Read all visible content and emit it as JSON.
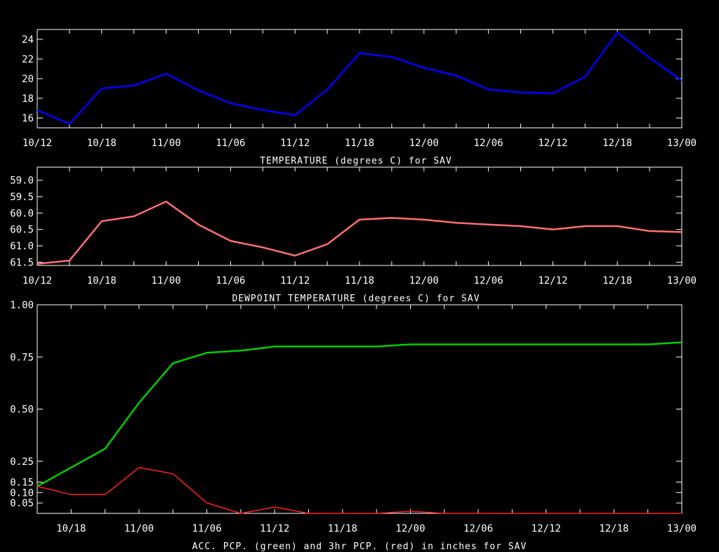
{
  "chart_data": [
    {
      "type": "line",
      "title": "TEMPERATURE (degrees C) for SAV",
      "categories": [
        "10/12",
        "10/15",
        "10/18",
        "10/21",
        "11/00",
        "11/03",
        "11/06",
        "11/09",
        "11/12",
        "11/15",
        "11/18",
        "11/21",
        "12/00",
        "12/03",
        "12/06",
        "12/09",
        "12/12",
        "12/15",
        "12/18",
        "12/21",
        "13/00"
      ],
      "x_tick_labels": [
        "10/12",
        "10/18",
        "11/00",
        "11/06",
        "11/12",
        "11/18",
        "12/00",
        "12/06",
        "12/12",
        "12/18",
        "13/00"
      ],
      "y_ticks": [
        "16",
        "18",
        "20",
        "22",
        "24"
      ],
      "ylim": [
        15,
        25
      ],
      "grid": false,
      "series": [
        {
          "color": "#0000ff",
          "values": [
            16.8,
            15.4,
            19.0,
            19.3,
            20.5,
            18.8,
            17.5,
            16.8,
            16.3,
            18.9,
            22.6,
            22.2,
            21.1,
            20.3,
            18.9,
            18.6,
            18.5,
            20.2,
            24.7,
            22.1,
            19.8
          ]
        }
      ]
    },
    {
      "type": "line",
      "title": "DEWPOINT TEMPERATURE (degrees C) for SAV",
      "categories": [
        "10/12",
        "10/15",
        "10/18",
        "10/21",
        "11/00",
        "11/03",
        "11/06",
        "11/09",
        "11/12",
        "11/15",
        "11/18",
        "11/21",
        "12/00",
        "12/03",
        "12/06",
        "12/09",
        "12/12",
        "12/15",
        "12/18",
        "12/21",
        "13/00"
      ],
      "x_tick_labels": [
        "10/12",
        "10/18",
        "11/00",
        "11/06",
        "11/12",
        "11/18",
        "12/00",
        "12/06",
        "12/12",
        "12/18",
        "13/00"
      ],
      "y_ticks": [
        "59.0",
        "59.5",
        "60.0",
        "60.5",
        "61.0",
        "61.5"
      ],
      "ylim": [
        58.6,
        61.6
      ],
      "y_inverted": true,
      "grid": false,
      "series": [
        {
          "color": "#ff7070",
          "values": [
            61.55,
            61.45,
            60.25,
            60.1,
            59.65,
            60.35,
            60.85,
            61.05,
            61.3,
            60.95,
            60.2,
            60.15,
            60.2,
            60.3,
            60.35,
            60.4,
            60.5,
            60.4,
            60.4,
            60.55,
            60.58
          ]
        }
      ]
    },
    {
      "type": "line",
      "title": "ACC. PCP. (green) and 3hr PCP. (red) in inches for SAV",
      "categories": [
        "10/15",
        "10/18",
        "10/21",
        "11/00",
        "11/03",
        "11/06",
        "11/09",
        "11/12",
        "11/15",
        "11/18",
        "11/21",
        "12/00",
        "12/03",
        "12/06",
        "12/09",
        "12/12",
        "12/15",
        "12/18",
        "12/21",
        "13/00"
      ],
      "x_tick_labels": [
        "10/18",
        "11/00",
        "11/06",
        "11/12",
        "11/18",
        "12/00",
        "12/06",
        "12/12",
        "12/18",
        "13/00"
      ],
      "y_ticks": [
        "0.05",
        "0.10",
        "0.15",
        "0.25",
        "0.50",
        "0.75",
        "1.00"
      ],
      "ylim": [
        0,
        1.0
      ],
      "grid": false,
      "series": [
        {
          "color": "#00cc00",
          "values": [
            0.13,
            0.22,
            0.31,
            0.53,
            0.72,
            0.77,
            0.78,
            0.8,
            0.8,
            0.8,
            0.8,
            0.81,
            0.81,
            0.81,
            0.81,
            0.81,
            0.81,
            0.81,
            0.81,
            0.82
          ]
        },
        {
          "color": "#ff2020",
          "values": [
            0.13,
            0.09,
            0.09,
            0.22,
            0.19,
            0.05,
            0.0,
            0.03,
            0.0,
            0.0,
            0.0,
            0.01,
            0.0,
            0.0,
            0.0,
            0.0,
            0.0,
            0.0,
            0.0,
            0.0
          ]
        }
      ]
    }
  ]
}
